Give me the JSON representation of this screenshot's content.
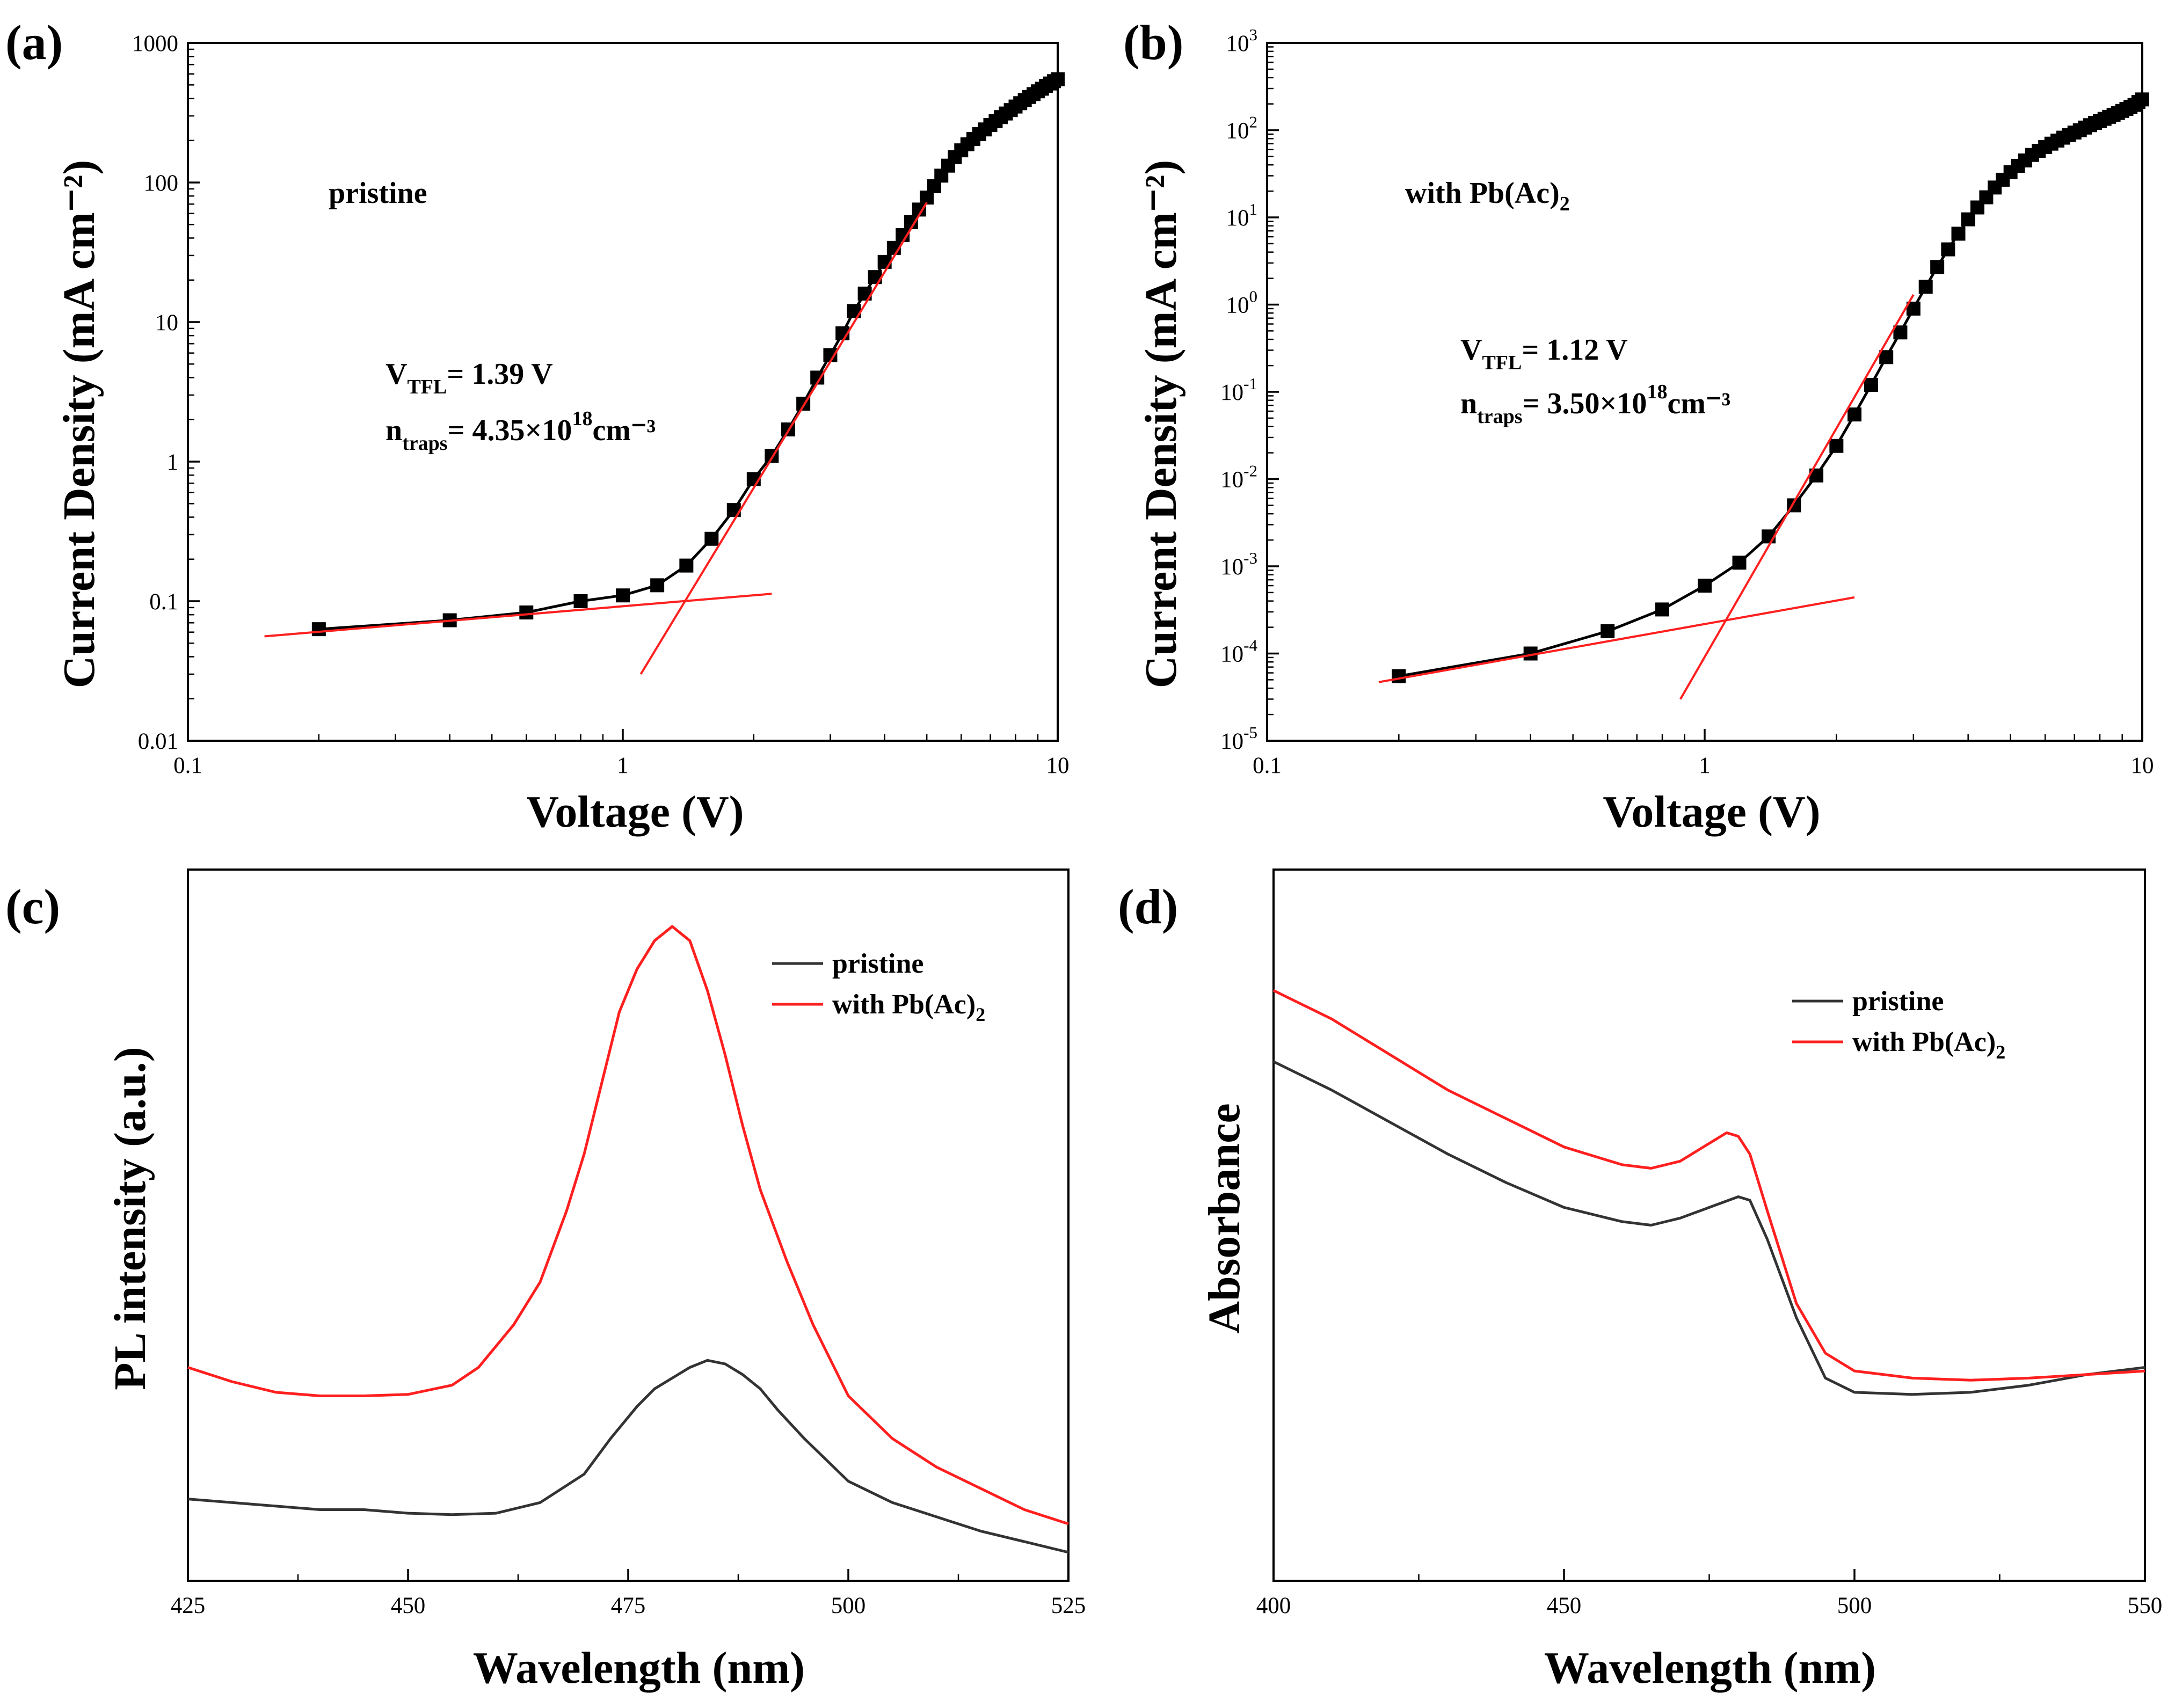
{
  "chart_data": [
    {
      "id": "a",
      "type": "scatter",
      "panel_label": "(a)",
      "xlabel": "Voltage (V)",
      "ylabel": "Current Density (mA cm⁻²)",
      "xscale": "log",
      "yscale": "log",
      "xlim": [
        0.1,
        10
      ],
      "ylim": [
        0.01,
        1000
      ],
      "x_ticks": [
        0.1,
        1,
        10
      ],
      "x_tick_labels": [
        "0.1",
        "1",
        "10"
      ],
      "y_ticks": [
        0.01,
        0.1,
        1,
        10,
        100,
        1000
      ],
      "y_tick_labels": [
        "0.01",
        "0.1",
        "1",
        "10",
        "100",
        "1000"
      ],
      "grid": false,
      "annotations": {
        "sample": "pristine",
        "vtfl_main": "V",
        "vtfl_sub": "TFL",
        "vtfl_value": "= 1.39 V",
        "ntraps_main": "n",
        "ntraps_sub": "traps",
        "ntraps_value": "= 4.35×10",
        "ntraps_exp": "18",
        "ntraps_unit": "cm⁻³"
      },
      "series": [
        {
          "type": "line+markers",
          "color": "#000000",
          "x": [
            0.2,
            0.4,
            0.6,
            0.8,
            1.0,
            1.2,
            1.4,
            1.6,
            1.8,
            2.0,
            2.2,
            2.4,
            2.6,
            2.8,
            3.0,
            3.2,
            3.4,
            3.6,
            3.8,
            4.0,
            4.2,
            4.4,
            4.6,
            4.8,
            5.0,
            5.2,
            5.4,
            5.6,
            5.8,
            6.0,
            6.2,
            6.4,
            6.6,
            6.8,
            7.0,
            7.2,
            7.4,
            7.6,
            7.8,
            8.0,
            8.2,
            8.4,
            8.6,
            8.8,
            9.0,
            9.2,
            9.4,
            9.6,
            9.8,
            10.0
          ],
          "y": [
            0.063,
            0.073,
            0.083,
            0.1,
            0.11,
            0.13,
            0.18,
            0.28,
            0.45,
            0.75,
            1.1,
            1.7,
            2.6,
            4.0,
            5.8,
            8.3,
            12,
            16,
            21,
            27,
            34,
            42,
            52,
            64,
            78,
            94,
            112,
            132,
            152,
            170,
            188,
            205,
            222,
            240,
            258,
            276,
            294,
            312,
            330,
            350,
            370,
            390,
            410,
            430,
            450,
            470,
            492,
            512,
            532,
            550
          ]
        },
        {
          "type": "line",
          "color": "#ff1f1f",
          "x": [
            0.15,
            2.2
          ],
          "y": [
            0.056,
            0.113
          ]
        },
        {
          "type": "line",
          "color": "#ff1f1f",
          "x": [
            1.1,
            5.0
          ],
          "y": [
            0.03,
            72
          ]
        }
      ]
    },
    {
      "id": "b",
      "type": "scatter",
      "panel_label": "(b)",
      "xlabel": "Voltage (V)",
      "ylabel": "Current Density (mA cm⁻²)",
      "xscale": "log",
      "yscale": "log",
      "xlim": [
        0.1,
        10
      ],
      "ylim": [
        1e-05,
        1000
      ],
      "x_ticks": [
        0.1,
        1,
        10
      ],
      "x_tick_labels": [
        "0.1",
        "1",
        "10"
      ],
      "y_ticks": [
        1e-05,
        0.0001,
        0.001,
        0.01,
        0.1,
        1,
        10,
        100,
        1000
      ],
      "y_tick_exponents": [
        "-5",
        "-4",
        "-3",
        "-2",
        "-1",
        "0",
        "1",
        "2",
        "3"
      ],
      "y_tick_base": "10",
      "grid": false,
      "annotations": {
        "sample": "with Pb(Ac)",
        "sample_sub": "2",
        "vtfl_main": "V",
        "vtfl_sub": "TFL",
        "vtfl_value": "= 1.12 V",
        "ntraps_main": "n",
        "ntraps_sub": "traps",
        "ntraps_value": "= 3.50×10",
        "ntraps_exp": "18",
        "ntraps_unit": "cm⁻³"
      },
      "series": [
        {
          "type": "line+markers",
          "color": "#000000",
          "x": [
            0.2,
            0.4,
            0.6,
            0.8,
            1.0,
            1.2,
            1.4,
            1.6,
            1.8,
            2.0,
            2.2,
            2.4,
            2.6,
            2.8,
            3.0,
            3.2,
            3.4,
            3.6,
            3.8,
            4.0,
            4.2,
            4.4,
            4.6,
            4.8,
            5.0,
            5.2,
            5.4,
            5.6,
            5.8,
            6.0,
            6.2,
            6.4,
            6.6,
            6.8,
            7.0,
            7.2,
            7.4,
            7.6,
            7.8,
            8.0,
            8.2,
            8.4,
            8.6,
            8.8,
            9.0,
            9.2,
            9.4,
            9.6,
            9.8,
            10.0
          ],
          "y": [
            5.5e-05,
            0.0001,
            0.00018,
            0.00032,
            0.0006,
            0.0011,
            0.0022,
            0.005,
            0.011,
            0.024,
            0.055,
            0.12,
            0.25,
            0.48,
            0.9,
            1.6,
            2.7,
            4.3,
            6.5,
            9.5,
            13,
            17,
            22,
            27,
            33,
            39,
            45,
            52,
            58,
            64,
            70,
            76,
            82,
            88,
            94,
            100,
            107,
            114,
            121,
            128,
            135,
            142,
            150,
            158,
            166,
            175,
            185,
            195,
            210,
            225
          ]
        },
        {
          "type": "line",
          "color": "#ff1f1f",
          "x": [
            0.18,
            2.2
          ],
          "y": [
            4.7e-05,
            0.00044
          ]
        },
        {
          "type": "line",
          "color": "#ff1f1f",
          "x": [
            0.88,
            3.0
          ],
          "y": [
            3e-05,
            1.3
          ]
        }
      ]
    },
    {
      "id": "c",
      "type": "line",
      "panel_label": "(c)",
      "xlabel": "Wavelength (nm)",
      "ylabel": "PL intensity (a.u.)",
      "xlim": [
        425,
        525
      ],
      "ylim": [
        0,
        1
      ],
      "x_ticks": [
        425,
        450,
        475,
        500,
        525
      ],
      "x_tick_labels": [
        "425",
        "450",
        "475",
        "500",
        "525"
      ],
      "grid": false,
      "legend": {
        "position": "top-right",
        "items": [
          {
            "label": "pristine",
            "sub": "",
            "color": "#333333"
          },
          {
            "label": "with Pb(Ac)",
            "sub": "2",
            "color": "#ff1f1f"
          }
        ]
      },
      "series": [
        {
          "color": "#333333",
          "x": [
            425,
            430,
            435,
            440,
            445,
            450,
            455,
            460,
            465,
            470,
            473,
            476,
            478,
            480,
            482,
            484,
            486,
            488,
            490,
            492,
            495,
            500,
            505,
            510,
            515,
            520,
            525
          ],
          "y": [
            0.115,
            0.11,
            0.105,
            0.1,
            0.1,
            0.095,
            0.093,
            0.095,
            0.11,
            0.15,
            0.2,
            0.245,
            0.27,
            0.285,
            0.3,
            0.31,
            0.305,
            0.29,
            0.27,
            0.24,
            0.2,
            0.14,
            0.11,
            0.09,
            0.07,
            0.055,
            0.04
          ]
        },
        {
          "color": "#ff1f1f",
          "x": [
            425,
            430,
            435,
            440,
            445,
            450,
            455,
            458,
            462,
            465,
            468,
            470,
            472,
            474,
            476,
            478,
            480,
            482,
            484,
            486,
            488,
            490,
            493,
            496,
            500,
            505,
            510,
            515,
            520,
            525
          ],
          "y": [
            0.3,
            0.28,
            0.265,
            0.26,
            0.26,
            0.262,
            0.275,
            0.3,
            0.36,
            0.42,
            0.52,
            0.6,
            0.7,
            0.8,
            0.86,
            0.9,
            0.92,
            0.9,
            0.83,
            0.74,
            0.64,
            0.55,
            0.45,
            0.36,
            0.26,
            0.2,
            0.16,
            0.13,
            0.1,
            0.08
          ]
        }
      ]
    },
    {
      "id": "d",
      "type": "line",
      "panel_label": "(d)",
      "xlabel": "Wavelength (nm)",
      "ylabel": "Absorbance",
      "xlim": [
        400,
        550
      ],
      "ylim": [
        0,
        1
      ],
      "x_ticks": [
        400,
        450,
        500,
        550
      ],
      "x_tick_labels": [
        "400",
        "450",
        "500",
        "550"
      ],
      "grid": false,
      "legend": {
        "position": "top-right",
        "items": [
          {
            "label": "pristine",
            "sub": "",
            "color": "#333333"
          },
          {
            "label": "with Pb(Ac)",
            "sub": "2",
            "color": "#ff1f1f"
          }
        ]
      },
      "series": [
        {
          "color": "#333333",
          "x": [
            400,
            410,
            420,
            430,
            440,
            450,
            460,
            465,
            470,
            475,
            480,
            482,
            485,
            490,
            495,
            500,
            510,
            520,
            530,
            540,
            550
          ],
          "y": [
            0.73,
            0.69,
            0.645,
            0.6,
            0.56,
            0.525,
            0.505,
            0.5,
            0.51,
            0.525,
            0.54,
            0.535,
            0.48,
            0.37,
            0.285,
            0.265,
            0.262,
            0.265,
            0.275,
            0.29,
            0.3
          ]
        },
        {
          "color": "#ff1f1f",
          "x": [
            400,
            410,
            420,
            430,
            440,
            450,
            460,
            465,
            470,
            475,
            478,
            480,
            482,
            485,
            490,
            495,
            500,
            510,
            520,
            530,
            540,
            550
          ],
          "y": [
            0.83,
            0.79,
            0.74,
            0.69,
            0.65,
            0.61,
            0.585,
            0.58,
            0.59,
            0.615,
            0.63,
            0.625,
            0.6,
            0.52,
            0.39,
            0.32,
            0.295,
            0.285,
            0.282,
            0.285,
            0.29,
            0.295
          ]
        }
      ]
    }
  ]
}
